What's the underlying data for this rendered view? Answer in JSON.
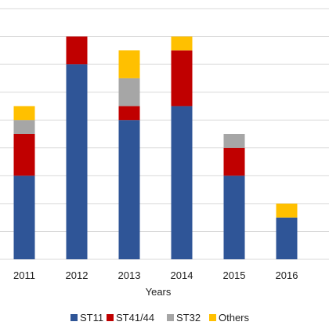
{
  "chart_data": {
    "type": "bar",
    "stacked": true,
    "categories": [
      "2011",
      "2012",
      "2013",
      "2014",
      "2015",
      "2016"
    ],
    "series": [
      {
        "name": "ST11",
        "color": "#2f5597",
        "values": [
          6,
          14,
          10,
          11,
          6,
          3
        ]
      },
      {
        "name": "ST41/44",
        "color": "#c00000",
        "values": [
          3,
          2,
          1,
          4,
          2,
          0
        ]
      },
      {
        "name": "ST32",
        "color": "#a6a6a6",
        "values": [
          1,
          0,
          2,
          0,
          1,
          0
        ]
      },
      {
        "name": "Others",
        "color": "#ffc000",
        "values": [
          1,
          0,
          2,
          1,
          0,
          1
        ]
      }
    ],
    "title": "",
    "xlabel": "Years",
    "ylabel": "",
    "ylim": [
      0,
      18
    ],
    "grid": true,
    "legend_position": "bottom"
  }
}
